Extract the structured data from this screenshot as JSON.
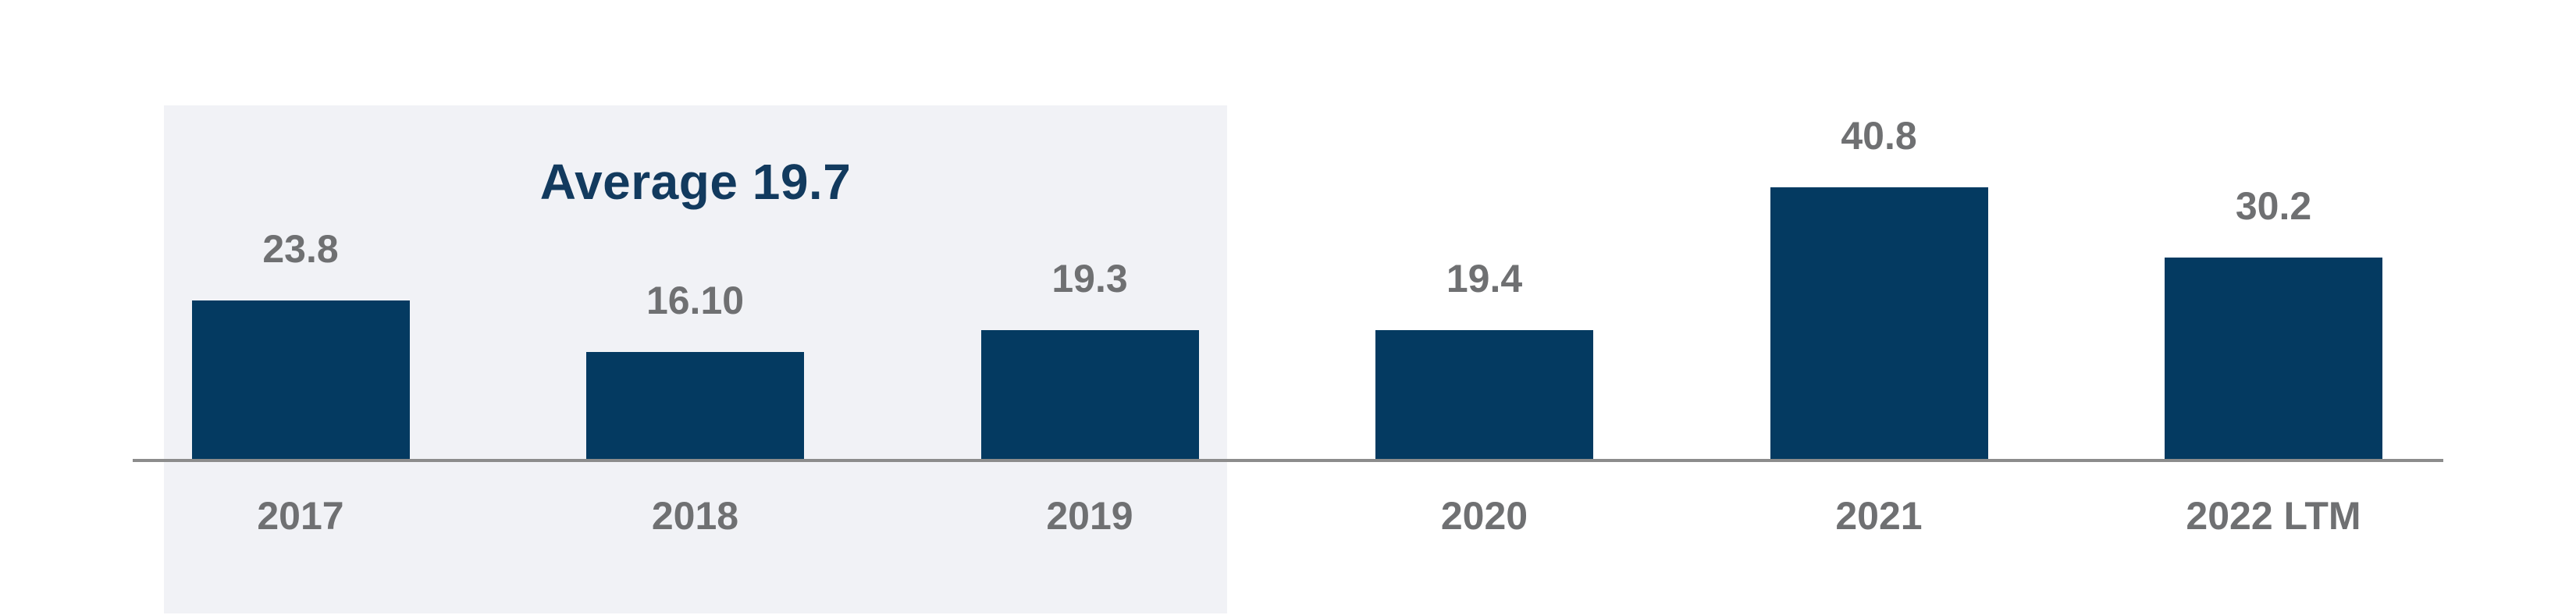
{
  "chart_data": {
    "type": "bar",
    "title": "",
    "xlabel": "",
    "ylabel": "",
    "categories": [
      "2017",
      "2018",
      "2019",
      "2020",
      "2021",
      "2022 LTM"
    ],
    "values": [
      23.8,
      16.1,
      19.3,
      19.4,
      40.8,
      30.2
    ],
    "value_labels": [
      "23.8",
      "16.10",
      "19.3",
      "19.4",
      "40.8",
      "30.2"
    ],
    "ylim": [
      0,
      53
    ],
    "grid": false,
    "legend": null,
    "annotation": {
      "text": "Average 19.7",
      "value": 19.7,
      "applies_to_categories": [
        "2017",
        "2018",
        "2019"
      ]
    },
    "colors": {
      "bar": "#043A61",
      "annotation_text": "#123A5E",
      "value_label": "#6F7072",
      "category_label": "#6F7072",
      "axis_line": "#8C8C8C",
      "highlight_region": "#F1F2F6",
      "background": "#FFFFFF"
    }
  }
}
